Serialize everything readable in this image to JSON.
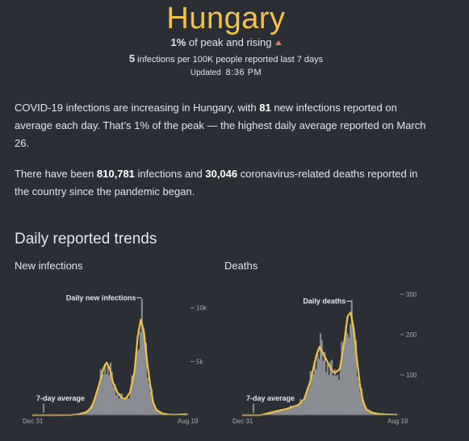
{
  "header": {
    "country": "Hungary",
    "peak_value": "1%",
    "peak_text": " of peak and rising",
    "infections_value": "5",
    "infections_text": "infections per 100K people reported last 7 days",
    "updated_label": "Updated",
    "updated_time": "8:36 PM"
  },
  "summary": {
    "p1_a": "COVID-19 infections are increasing in Hungary, with ",
    "p1_b": "81",
    "p1_c": " new infections reported on average each day. That’s 1% of the peak — the highest daily average reported on March 26.",
    "p2_a": "There have been ",
    "p2_b": "810,781",
    "p2_c": " infections and ",
    "p2_d": "30,046",
    "p2_e": " coronavirus-related deaths reported in the country since the pandemic began."
  },
  "trends": {
    "title": "Daily reported trends",
    "infections_title": "New infections",
    "deaths_title": "Deaths"
  },
  "colors": {
    "accent": "#f0c24a",
    "bars": "#8a8d91",
    "background": "#2b2f35",
    "rising": "#e07b6a"
  },
  "chart_data": [
    {
      "type": "area",
      "title": "New infections",
      "x_start": "Dec 31",
      "x_end": "Aug 19",
      "ylim": [
        0,
        12000
      ],
      "y_ticks": [
        5000,
        10000
      ],
      "y_tick_labels": [
        "5k",
        "10k"
      ],
      "annotations": [
        "Daily new infections",
        "7-day average"
      ],
      "x": [
        0.0,
        0.15,
        0.25,
        0.3,
        0.35,
        0.38,
        0.4,
        0.43,
        0.46,
        0.48,
        0.5,
        0.52,
        0.55,
        0.58,
        0.6,
        0.63,
        0.66,
        0.68,
        0.7,
        0.72,
        0.74,
        0.76,
        0.78,
        0.8,
        0.84,
        0.88,
        0.92,
        1.0
      ],
      "series": [
        {
          "name": "Daily new infections",
          "values": [
            0,
            0,
            10,
            80,
            300,
            700,
            1400,
            2800,
            4400,
            4900,
            4300,
            3100,
            2100,
            1600,
            1500,
            2100,
            4100,
            7300,
            8900,
            7800,
            5100,
            2900,
            1200,
            500,
            150,
            60,
            40,
            80
          ],
          "max": 11000
        },
        {
          "name": "7-day average",
          "values": [
            0,
            0,
            10,
            80,
            300,
            700,
            1400,
            2800,
            4400,
            4900,
            4300,
            3100,
            2100,
            1600,
            1500,
            2100,
            4100,
            7300,
            8900,
            7800,
            5100,
            2900,
            1200,
            500,
            150,
            60,
            40,
            80
          ]
        }
      ]
    },
    {
      "type": "area",
      "title": "Deaths",
      "x_start": "Dec 31",
      "x_end": "Aug 19",
      "ylim": [
        0,
        320
      ],
      "y_ticks": [
        100,
        200,
        300
      ],
      "y_tick_labels": [
        "100",
        "200",
        "300"
      ],
      "annotations": [
        "Daily deaths",
        "7-day average"
      ],
      "x": [
        0.0,
        0.12,
        0.2,
        0.28,
        0.36,
        0.4,
        0.44,
        0.48,
        0.5,
        0.52,
        0.54,
        0.56,
        0.58,
        0.6,
        0.63,
        0.66,
        0.68,
        0.7,
        0.72,
        0.74,
        0.76,
        0.78,
        0.8,
        0.84,
        0.88,
        0.92,
        1.0
      ],
      "series": [
        {
          "name": "Daily deaths",
          "values": [
            0,
            0,
            8,
            15,
            25,
            40,
            85,
            150,
            170,
            155,
            140,
            125,
            110,
            105,
            115,
            185,
            245,
            255,
            215,
            140,
            75,
            35,
            15,
            6,
            3,
            2,
            1
          ],
          "max": 285
        },
        {
          "name": "7-day average",
          "values": [
            0,
            0,
            8,
            15,
            25,
            40,
            85,
            150,
            170,
            155,
            140,
            125,
            110,
            105,
            115,
            185,
            245,
            255,
            215,
            140,
            75,
            35,
            15,
            6,
            3,
            2,
            1
          ]
        }
      ]
    }
  ]
}
